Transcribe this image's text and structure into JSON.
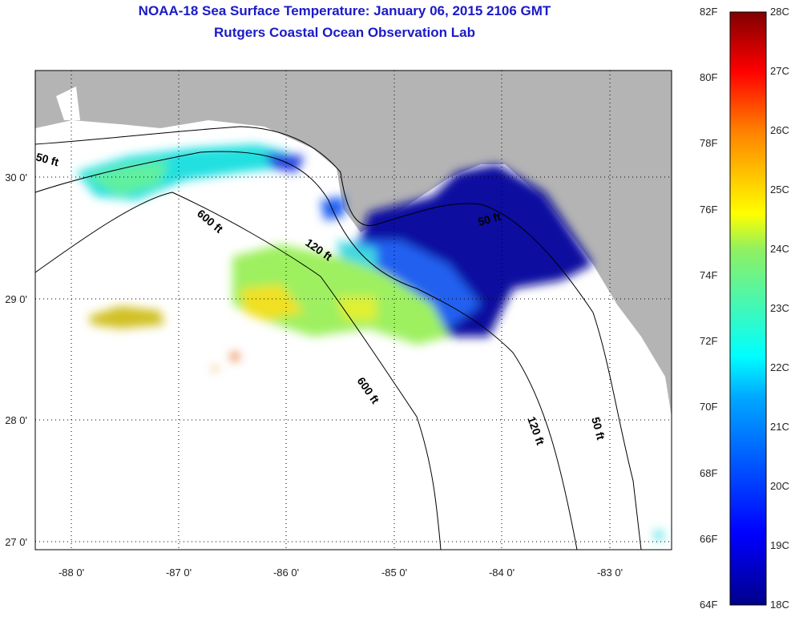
{
  "title": "NOAA-18 Sea Surface Temperature:  January 06, 2015 2106 GMT",
  "subtitle": "Rutgers Coastal Ocean Observation Lab",
  "axes": {
    "lon_labels": [
      "-88 0'",
      "-87 0'",
      "-86 0'",
      "-85 0'",
      "-84 0'",
      "-83 0'"
    ],
    "lon_values": [
      -88,
      -87,
      -86,
      -85,
      -84,
      -83
    ],
    "lat_labels": [
      "30 0'",
      "29 0'",
      "28 0'",
      "27 0'"
    ],
    "lat_values": [
      30,
      29,
      28,
      27
    ]
  },
  "contour_labels": [
    "50 ft",
    "600 ft",
    "120 ft",
    "50 ft",
    "600 ft",
    "120 ft",
    "50 ft"
  ],
  "colorbar": {
    "fahrenheit": [
      "82F",
      "80F",
      "78F",
      "76F",
      "74F",
      "72F",
      "70F",
      "68F",
      "66F",
      "64F"
    ],
    "celsius": [
      "28C",
      "27C",
      "26C",
      "25C",
      "24C",
      "23C",
      "22C",
      "21C",
      "20C",
      "19C",
      "18C"
    ],
    "range_c": [
      18,
      28
    ]
  },
  "colors": {
    "land": "#b4b4b4",
    "no_data": "#ffffff",
    "title": "#1a1ac8"
  }
}
